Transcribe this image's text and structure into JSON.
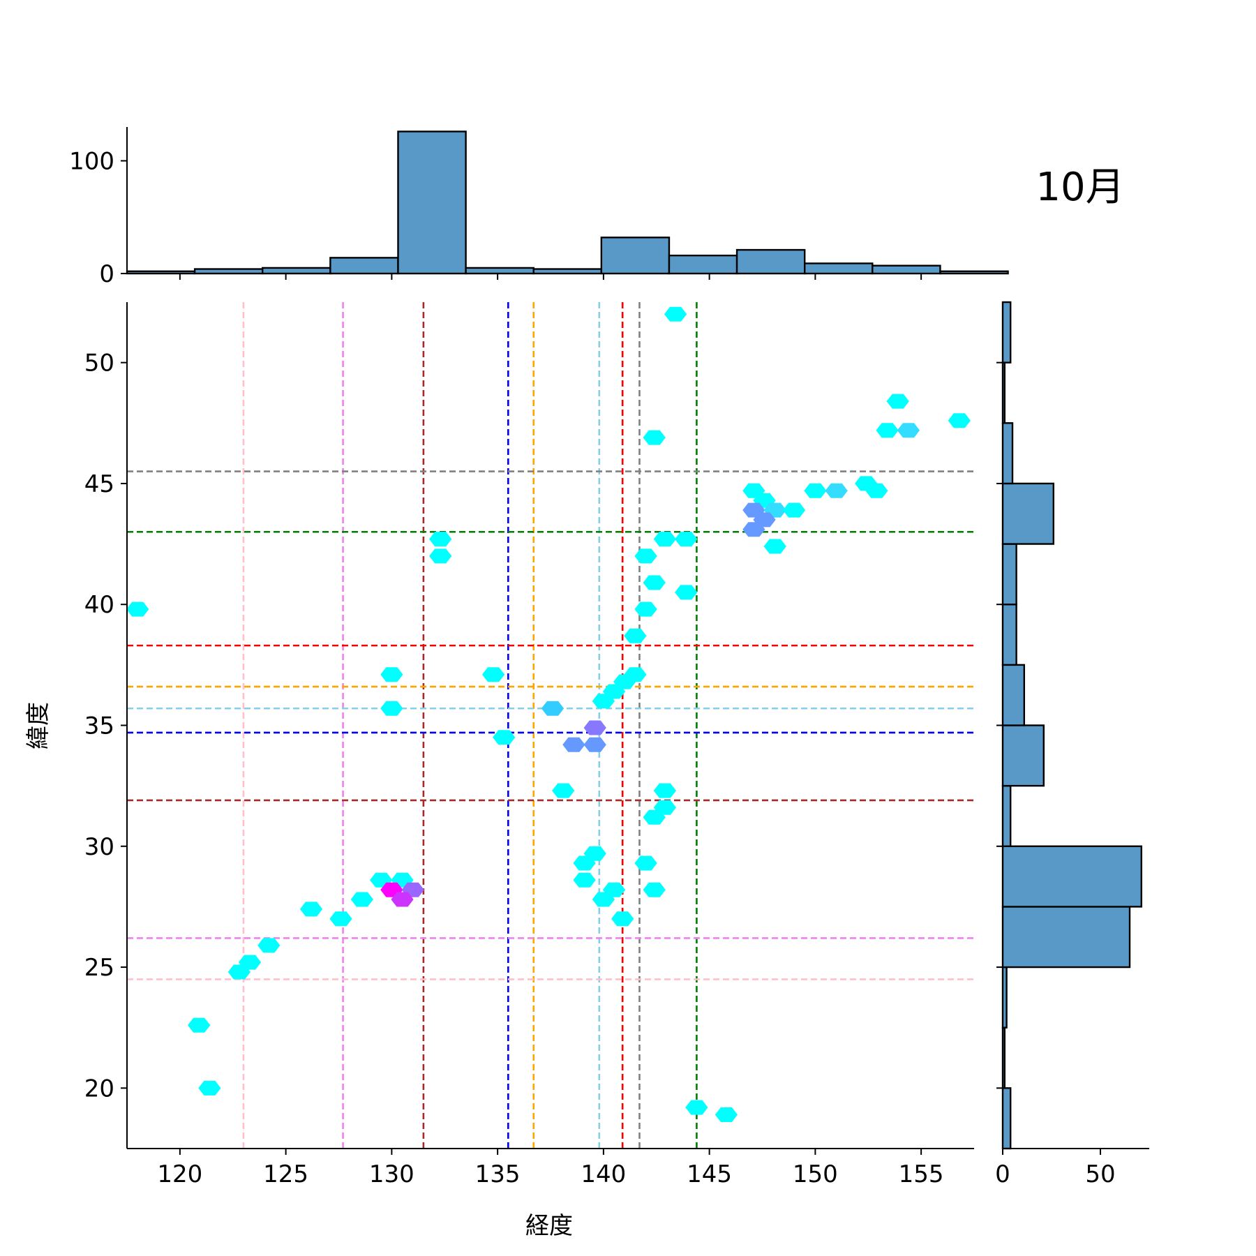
{
  "chart_data": {
    "type": "hexbin-jointplot",
    "title": "10月",
    "xlabel": "経度",
    "ylabel": "緯度",
    "xlim": [
      117.5,
      157.5
    ],
    "ylim": [
      17.5,
      52.5
    ],
    "xticks": [
      120,
      125,
      130,
      135,
      140,
      145,
      150,
      155
    ],
    "yticks": [
      20,
      25,
      30,
      35,
      40,
      45,
      50
    ],
    "top_hist": {
      "yticks": [
        0,
        100
      ],
      "ylim": [
        0,
        130
      ],
      "bins": [
        {
          "x0": 117.5,
          "x1": 120.7,
          "count": 2
        },
        {
          "x0": 120.7,
          "x1": 123.9,
          "count": 4
        },
        {
          "x0": 123.9,
          "x1": 127.1,
          "count": 5
        },
        {
          "x0": 127.1,
          "x1": 130.3,
          "count": 14
        },
        {
          "x0": 130.3,
          "x1": 133.5,
          "count": 126
        },
        {
          "x0": 133.5,
          "x1": 136.7,
          "count": 5
        },
        {
          "x0": 136.7,
          "x1": 139.9,
          "count": 4
        },
        {
          "x0": 139.9,
          "x1": 143.1,
          "count": 32
        },
        {
          "x0": 143.1,
          "x1": 146.3,
          "count": 16
        },
        {
          "x0": 146.3,
          "x1": 149.5,
          "count": 21
        },
        {
          "x0": 149.5,
          "x1": 152.7,
          "count": 9
        },
        {
          "x0": 152.7,
          "x1": 155.9,
          "count": 7
        },
        {
          "x0": 155.9,
          "x1": 159.1,
          "count": 2
        }
      ]
    },
    "right_hist": {
      "xticks": [
        0,
        50
      ],
      "xlim": [
        0,
        75
      ],
      "bins": [
        {
          "y0": 17.5,
          "y1": 20.0,
          "count": 4
        },
        {
          "y0": 20.0,
          "y1": 22.5,
          "count": 1
        },
        {
          "y0": 22.5,
          "y1": 25.0,
          "count": 2
        },
        {
          "y0": 25.0,
          "y1": 27.5,
          "count": 65
        },
        {
          "y0": 27.5,
          "y1": 30.0,
          "count": 71
        },
        {
          "y0": 30.0,
          "y1": 32.5,
          "count": 4
        },
        {
          "y0": 32.5,
          "y1": 35.0,
          "count": 21
        },
        {
          "y0": 35.0,
          "y1": 37.5,
          "count": 11
        },
        {
          "y0": 37.5,
          "y1": 40.0,
          "count": 7
        },
        {
          "y0": 40.0,
          "y1": 42.5,
          "count": 7
        },
        {
          "y0": 42.5,
          "y1": 45.0,
          "count": 26
        },
        {
          "y0": 45.0,
          "y1": 47.5,
          "count": 5
        },
        {
          "y0": 47.5,
          "y1": 50.0,
          "count": 1
        },
        {
          "y0": 50.0,
          "y1": 52.5,
          "count": 4
        }
      ]
    },
    "vlines": [
      {
        "x": 123.0,
        "color": "#ffc0cb"
      },
      {
        "x": 127.7,
        "color": "#ee82ee"
      },
      {
        "x": 131.5,
        "color": "#a52a2a"
      },
      {
        "x": 135.5,
        "color": "#0000ff"
      },
      {
        "x": 136.7,
        "color": "#ffa500"
      },
      {
        "x": 139.8,
        "color": "#87ceeb"
      },
      {
        "x": 140.9,
        "color": "#ff0000"
      },
      {
        "x": 141.7,
        "color": "#808080"
      },
      {
        "x": 144.4,
        "color": "#008000"
      }
    ],
    "hlines": [
      {
        "y": 45.5,
        "color": "#808080"
      },
      {
        "y": 43.0,
        "color": "#008000"
      },
      {
        "y": 38.3,
        "color": "#ff0000"
      },
      {
        "y": 36.6,
        "color": "#ffa500"
      },
      {
        "y": 35.7,
        "color": "#87ceeb"
      },
      {
        "y": 34.7,
        "color": "#0000ff"
      },
      {
        "y": 31.9,
        "color": "#a52a2a"
      },
      {
        "y": 26.2,
        "color": "#ee82ee"
      },
      {
        "y": 24.5,
        "color": "#ffc0cb"
      }
    ],
    "hexbins": [
      {
        "x": 143.4,
        "y": 52.0,
        "color": "#00ffff"
      },
      {
        "x": 118.0,
        "y": 39.8,
        "color": "#00ffff"
      },
      {
        "x": 153.9,
        "y": 48.4,
        "color": "#00ffff"
      },
      {
        "x": 156.8,
        "y": 47.6,
        "color": "#00ffff"
      },
      {
        "x": 153.4,
        "y": 47.2,
        "color": "#00ffff"
      },
      {
        "x": 154.4,
        "y": 47.2,
        "color": "#33ddff"
      },
      {
        "x": 142.4,
        "y": 46.9,
        "color": "#00ffff"
      },
      {
        "x": 152.4,
        "y": 45.0,
        "color": "#00ffff"
      },
      {
        "x": 152.9,
        "y": 44.7,
        "color": "#00ffff"
      },
      {
        "x": 150.0,
        "y": 44.7,
        "color": "#00ffff"
      },
      {
        "x": 151.0,
        "y": 44.7,
        "color": "#33ddff"
      },
      {
        "x": 147.1,
        "y": 44.7,
        "color": "#00ffff"
      },
      {
        "x": 147.6,
        "y": 44.3,
        "color": "#00ffff"
      },
      {
        "x": 147.1,
        "y": 43.9,
        "color": "#6699ff"
      },
      {
        "x": 148.1,
        "y": 43.9,
        "color": "#33ddff"
      },
      {
        "x": 149.0,
        "y": 43.9,
        "color": "#00ffff"
      },
      {
        "x": 147.6,
        "y": 43.5,
        "color": "#6699ff"
      },
      {
        "x": 147.1,
        "y": 43.1,
        "color": "#6699ff"
      },
      {
        "x": 132.3,
        "y": 42.7,
        "color": "#00ffff"
      },
      {
        "x": 142.9,
        "y": 42.7,
        "color": "#00ffff"
      },
      {
        "x": 143.9,
        "y": 42.7,
        "color": "#00ffff"
      },
      {
        "x": 148.1,
        "y": 42.4,
        "color": "#00ffff"
      },
      {
        "x": 132.3,
        "y": 42.0,
        "color": "#00ffff"
      },
      {
        "x": 142.0,
        "y": 42.0,
        "color": "#00ffff"
      },
      {
        "x": 142.4,
        "y": 40.9,
        "color": "#00ffff"
      },
      {
        "x": 143.9,
        "y": 40.5,
        "color": "#00ffff"
      },
      {
        "x": 142.0,
        "y": 39.8,
        "color": "#00ffff"
      },
      {
        "x": 141.5,
        "y": 38.7,
        "color": "#00ffff"
      },
      {
        "x": 130.0,
        "y": 37.1,
        "color": "#00ffff"
      },
      {
        "x": 134.8,
        "y": 37.1,
        "color": "#00ffff"
      },
      {
        "x": 141.5,
        "y": 37.1,
        "color": "#00ffff"
      },
      {
        "x": 141.0,
        "y": 36.8,
        "color": "#00ffff"
      },
      {
        "x": 140.5,
        "y": 36.4,
        "color": "#00ffff"
      },
      {
        "x": 140.0,
        "y": 36.0,
        "color": "#00ffff"
      },
      {
        "x": 130.0,
        "y": 35.7,
        "color": "#00ffff"
      },
      {
        "x": 137.6,
        "y": 35.7,
        "color": "#33ccff"
      },
      {
        "x": 139.6,
        "y": 34.9,
        "color": "#8877ff"
      },
      {
        "x": 135.3,
        "y": 34.5,
        "color": "#00ffff"
      },
      {
        "x": 138.6,
        "y": 34.2,
        "color": "#6699ff"
      },
      {
        "x": 139.6,
        "y": 34.2,
        "color": "#6699ff"
      },
      {
        "x": 138.1,
        "y": 32.3,
        "color": "#00ffff"
      },
      {
        "x": 142.9,
        "y": 32.3,
        "color": "#00ffff"
      },
      {
        "x": 142.9,
        "y": 31.6,
        "color": "#00ffff"
      },
      {
        "x": 142.4,
        "y": 31.2,
        "color": "#00ffff"
      },
      {
        "x": 139.6,
        "y": 29.7,
        "color": "#00ffff"
      },
      {
        "x": 139.1,
        "y": 29.3,
        "color": "#00ffff"
      },
      {
        "x": 142.0,
        "y": 29.3,
        "color": "#00ffff"
      },
      {
        "x": 129.5,
        "y": 28.6,
        "color": "#00ffff"
      },
      {
        "x": 130.5,
        "y": 28.6,
        "color": "#00ffff"
      },
      {
        "x": 139.1,
        "y": 28.6,
        "color": "#00ffff"
      },
      {
        "x": 130.0,
        "y": 28.2,
        "color": "#ff00ff"
      },
      {
        "x": 131.0,
        "y": 28.2,
        "color": "#9966ff"
      },
      {
        "x": 140.5,
        "y": 28.2,
        "color": "#00ffff"
      },
      {
        "x": 142.4,
        "y": 28.2,
        "color": "#00ffff"
      },
      {
        "x": 128.6,
        "y": 27.8,
        "color": "#00ffff"
      },
      {
        "x": 130.5,
        "y": 27.8,
        "color": "#cc33ff"
      },
      {
        "x": 140.0,
        "y": 27.8,
        "color": "#00ffff"
      },
      {
        "x": 126.2,
        "y": 27.4,
        "color": "#00ffff"
      },
      {
        "x": 127.6,
        "y": 27.0,
        "color": "#00ffff"
      },
      {
        "x": 140.9,
        "y": 27.0,
        "color": "#00ffff"
      },
      {
        "x": 124.2,
        "y": 25.9,
        "color": "#00ffff"
      },
      {
        "x": 123.3,
        "y": 25.2,
        "color": "#00ffff"
      },
      {
        "x": 122.8,
        "y": 24.8,
        "color": "#00ffff"
      },
      {
        "x": 120.9,
        "y": 22.6,
        "color": "#00ffff"
      },
      {
        "x": 121.4,
        "y": 20.0,
        "color": "#00ffff"
      },
      {
        "x": 144.4,
        "y": 19.2,
        "color": "#00ffff"
      },
      {
        "x": 145.8,
        "y": 18.9,
        "color": "#00ffff"
      }
    ]
  }
}
